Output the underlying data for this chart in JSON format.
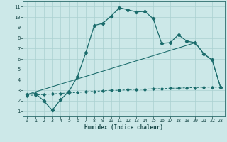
{
  "xlabel": "Humidex (Indice chaleur)",
  "bg_color": "#cce8e8",
  "grid_color": "#aad0d0",
  "line_color": "#1a6b6b",
  "xlim": [
    -0.5,
    23.5
  ],
  "ylim": [
    0.5,
    11.5
  ],
  "xticks": [
    0,
    1,
    2,
    3,
    4,
    5,
    6,
    7,
    8,
    9,
    10,
    11,
    12,
    13,
    14,
    15,
    16,
    17,
    18,
    19,
    20,
    21,
    22,
    23
  ],
  "yticks": [
    1,
    2,
    3,
    4,
    5,
    6,
    7,
    8,
    9,
    10,
    11
  ],
  "line1_x": [
    0,
    1,
    2,
    3,
    4,
    5,
    6,
    7,
    8,
    9,
    10,
    11,
    12,
    13,
    14,
    15,
    16,
    17,
    18,
    19,
    20,
    21,
    22,
    23
  ],
  "line1_y": [
    2.6,
    2.7,
    2.0,
    1.1,
    2.1,
    2.9,
    4.3,
    6.6,
    9.2,
    9.4,
    10.1,
    10.9,
    10.7,
    10.5,
    10.55,
    9.85,
    7.5,
    7.55,
    8.3,
    7.7,
    7.55,
    6.5,
    5.9,
    3.3
  ],
  "line2_x": [
    0,
    20,
    21,
    22,
    23
  ],
  "line2_y": [
    2.6,
    7.55,
    6.5,
    5.9,
    3.3
  ],
  "line3_x": [
    0,
    1,
    2,
    3,
    4,
    5,
    6,
    7,
    8,
    9,
    10,
    11,
    12,
    13,
    14,
    15,
    16,
    17,
    18,
    19,
    20,
    21,
    22,
    23
  ],
  "line3_y": [
    2.5,
    2.55,
    2.6,
    2.65,
    2.7,
    2.75,
    2.8,
    2.85,
    2.9,
    2.95,
    3.0,
    3.0,
    3.05,
    3.1,
    3.1,
    3.15,
    3.15,
    3.2,
    3.2,
    3.25,
    3.25,
    3.3,
    3.3,
    3.3
  ],
  "xlabel_fontsize": 5.5,
  "tick_fontsize": 4.8,
  "line_width": 0.9,
  "marker_size": 2.2
}
